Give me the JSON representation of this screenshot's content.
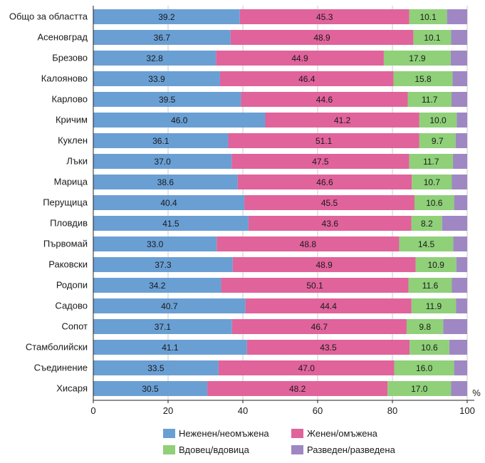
{
  "chart_data": {
    "type": "bar",
    "orientation": "horizontal",
    "stacked": true,
    "categories": [
      "Общо за областта",
      "Асеновград",
      "Брезово",
      "Калояново",
      "Карлово",
      "Кричим",
      "Куклен",
      "Лъки",
      "Марица",
      "Перущица",
      "Пловдив",
      "Първомай",
      "Раковски",
      "Родопи",
      "Садово",
      "Сопот",
      "Стамболийски",
      "Съединение",
      "Хисаря"
    ],
    "series": [
      {
        "name": "Неженен/неомъжена",
        "color": "#6a9fd4",
        "values": [
          39.2,
          36.7,
          32.8,
          33.9,
          39.5,
          46.0,
          36.1,
          37.0,
          38.6,
          40.4,
          41.5,
          33.0,
          37.3,
          34.2,
          40.7,
          37.1,
          41.1,
          33.5,
          30.5
        ]
      },
      {
        "name": "Женен/омъжена",
        "color": "#e0639b",
        "values": [
          45.3,
          48.9,
          44.9,
          46.4,
          44.6,
          41.2,
          51.1,
          47.5,
          46.6,
          45.5,
          43.6,
          48.8,
          48.9,
          50.1,
          44.4,
          46.7,
          43.5,
          47.0,
          48.2
        ]
      },
      {
        "name": "Вдовец/вдовица",
        "color": "#8fd079",
        "values": [
          10.1,
          10.1,
          17.9,
          15.8,
          11.7,
          10.0,
          9.7,
          11.7,
          10.7,
          10.6,
          8.2,
          14.5,
          10.9,
          11.6,
          11.9,
          9.8,
          10.6,
          16.0,
          17.0
        ]
      },
      {
        "name": "Разведен/разведена",
        "color": "#9f87c4",
        "values": [
          5.4,
          4.3,
          4.4,
          3.9,
          4.2,
          2.8,
          3.1,
          3.8,
          4.1,
          3.5,
          6.7,
          3.7,
          2.9,
          4.1,
          3.0,
          6.4,
          4.8,
          3.5,
          4.3
        ]
      }
    ],
    "labeled_series": [
      0,
      1,
      2
    ],
    "value_labels": [
      [
        "39.2",
        "36.7",
        "32.8",
        "33.9",
        "39.5",
        "46.0",
        "36.1",
        "37.0",
        "38.6",
        "40.4",
        "41.5",
        "33.0",
        "37.3",
        "34.2",
        "40.7",
        "37.1",
        "41.1",
        "33.5",
        "30.5"
      ],
      [
        "45.3",
        "48.9",
        "44.9",
        "46.4",
        "44.6",
        "41.2",
        "51.1",
        "47.5",
        "46.6",
        "45.5",
        "43.6",
        "48.8",
        "48.9",
        "50.1",
        "44.4",
        "46.7",
        "43.5",
        "47.0",
        "48.2"
      ],
      [
        "10.1",
        "10.1",
        "17.9",
        "15.8",
        "11.7",
        "10.0",
        "9.7",
        "11.7",
        "10.7",
        "10.6",
        "8.2",
        "14.5",
        "10.9",
        "11.6",
        "11.9",
        "9.8",
        "10.6",
        "16.0",
        "17.0"
      ]
    ],
    "xlim": [
      0,
      100
    ],
    "xticks": [
      0,
      20,
      40,
      60,
      80,
      100
    ],
    "xtick_labels": [
      "0",
      "20",
      "40",
      "60",
      "80",
      "100"
    ],
    "unit_label": "%",
    "grid": true,
    "legend_position": "bottom",
    "title": "",
    "xlabel": "",
    "ylabel": ""
  }
}
